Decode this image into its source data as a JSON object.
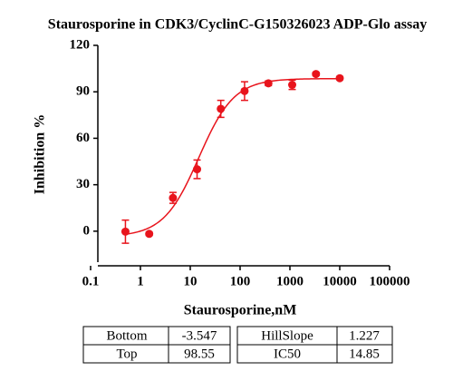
{
  "chart_data": {
    "type": "scatter",
    "title": "Staurosporine in CDK3/CyclinC-G150326023 ADP-Glo assay",
    "xlabel": "Staurosporine,nM",
    "ylabel": "Inhibition %",
    "x": [
      0.5,
      1.5,
      4.5,
      13.7,
      41,
      123,
      370,
      1111,
      3333,
      10000
    ],
    "values": [
      -0.3,
      -1.7,
      21.5,
      40,
      79,
      90.5,
      95.5,
      94.5,
      101.5,
      98.8
    ],
    "errors": [
      7.5,
      1,
      3.5,
      6,
      5.5,
      6,
      1.5,
      3,
      1,
      1
    ],
    "color": "#e8141c",
    "xlog": true,
    "xlim": [
      0.1,
      100000
    ],
    "xticks": [
      0.1,
      1,
      10,
      100,
      1000,
      10000,
      100000
    ],
    "ylim": [
      -20,
      120
    ],
    "yticks": [
      0,
      30,
      60,
      90,
      120
    ]
  },
  "table": {
    "rows": [
      [
        "Bottom",
        -3.547,
        "HillSlope",
        1.227
      ],
      [
        "Top",
        98.55,
        "IC50",
        14.85
      ]
    ]
  }
}
